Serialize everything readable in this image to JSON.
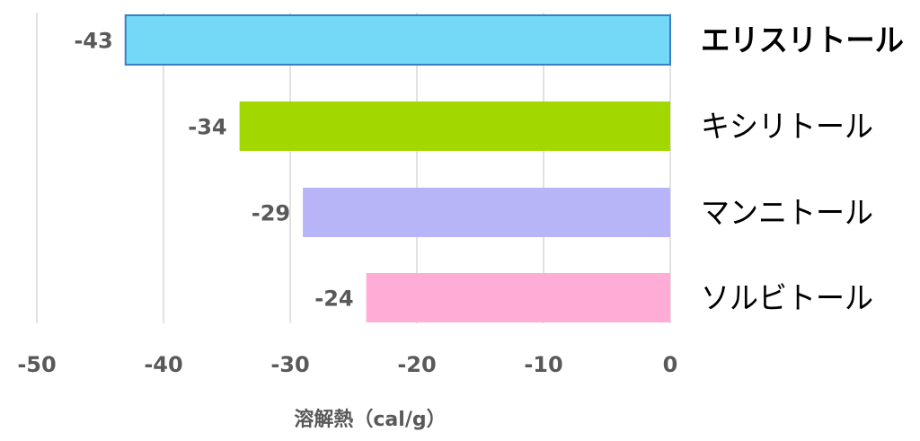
{
  "chart_data": {
    "type": "bar",
    "orientation": "horizontal",
    "categories": [
      "エリスリトール",
      "キシリトール",
      "マンニトール",
      "ソルビトール"
    ],
    "values": [
      -43,
      -34,
      -29,
      -24
    ],
    "data_labels": [
      "-43",
      "-34",
      "-29",
      "-24"
    ],
    "colors": [
      "#74d9f7",
      "#a2d800",
      "#b8b4f8",
      "#ffacd7"
    ],
    "highlight_category": "エリスリトール",
    "xlabel": "溶解熱（cal/g）",
    "ylabel": "",
    "title": "",
    "xlim": [
      -50,
      0
    ],
    "xticks": [
      -50,
      -40,
      -30,
      -20,
      -10,
      0
    ],
    "xtick_labels": [
      "-50",
      "-40",
      "-30",
      "-20",
      "-10",
      "0"
    ],
    "grid": true,
    "category_axis_position": "right"
  }
}
